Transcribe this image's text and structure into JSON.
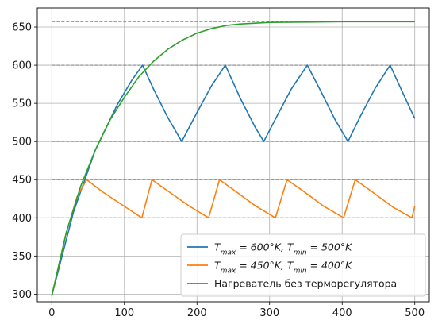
{
  "chart_data": {
    "type": "line",
    "title": "",
    "xlabel": "",
    "ylabel": "",
    "xlim": [
      -20,
      520
    ],
    "ylim": [
      290,
      675
    ],
    "grid": true,
    "legend_position": "lower-right",
    "x_ticks": [
      0,
      100,
      200,
      300,
      400,
      500
    ],
    "y_ticks": [
      300,
      350,
      400,
      450,
      500,
      550,
      600,
      650
    ],
    "x_tick_labels": [
      "0",
      "100",
      "200",
      "300",
      "400",
      "500"
    ],
    "y_tick_labels": [
      "300",
      "350",
      "400",
      "450",
      "500",
      "550",
      "600",
      "650"
    ],
    "reference_lines": [
      {
        "y": 657,
        "x_range": [
          0,
          500
        ],
        "color": "#808080",
        "style": "dashed"
      },
      {
        "y": 600,
        "x_range": [
          0,
          500
        ],
        "color": "#808080",
        "style": "dashed"
      },
      {
        "y": 500,
        "x_range": [
          0,
          500
        ],
        "color": "#808080",
        "style": "dashed"
      },
      {
        "y": 450,
        "x_range": [
          0,
          500
        ],
        "color": "#808080",
        "style": "dashed"
      },
      {
        "y": 400,
        "x_range": [
          0,
          500
        ],
        "color": "#808080",
        "style": "dashed"
      }
    ],
    "series": [
      {
        "name": "T_max = 600°K, T_min = 500°K",
        "label_parts": [
          "T",
          "max",
          " = 600°K, T",
          "min",
          " = 500°K"
        ],
        "color": "#1f77b4",
        "points": [
          [
            0,
            298
          ],
          [
            30,
            408
          ],
          [
            60,
            489
          ],
          [
            90,
            548
          ],
          [
            110,
            580
          ],
          [
            125,
            600
          ],
          [
            140,
            569
          ],
          [
            160,
            531
          ],
          [
            179,
            500
          ],
          [
            200,
            538
          ],
          [
            220,
            573
          ],
          [
            239,
            600
          ],
          [
            260,
            556
          ],
          [
            280,
            519
          ],
          [
            292,
            500
          ],
          [
            310,
            533
          ],
          [
            330,
            569
          ],
          [
            352,
            600
          ],
          [
            370,
            567
          ],
          [
            390,
            529
          ],
          [
            408,
            500
          ],
          [
            425,
            533
          ],
          [
            445,
            569
          ],
          [
            466,
            600
          ],
          [
            480,
            571
          ],
          [
            500,
            530
          ]
        ]
      },
      {
        "name": "T_max = 450°K, T_min = 400°K",
        "label_parts": [
          "T",
          "max",
          " = 450°K, T",
          "min",
          " = 400°K"
        ],
        "color": "#ff7f0e",
        "points": [
          [
            0,
            298
          ],
          [
            20,
            381
          ],
          [
            35,
            428
          ],
          [
            48,
            450
          ],
          [
            70,
            434
          ],
          [
            100,
            415
          ],
          [
            124,
            400
          ],
          [
            138,
            450
          ],
          [
            160,
            435
          ],
          [
            190,
            415
          ],
          [
            216,
            400
          ],
          [
            231,
            450
          ],
          [
            250,
            437
          ],
          [
            280,
            416
          ],
          [
            308,
            400
          ],
          [
            324,
            450
          ],
          [
            345,
            436
          ],
          [
            375,
            415
          ],
          [
            402,
            400
          ],
          [
            418,
            450
          ],
          [
            440,
            435
          ],
          [
            470,
            414
          ],
          [
            496,
            400
          ],
          [
            500,
            415
          ]
        ]
      },
      {
        "name": "Нагреватель без терморегулятора",
        "label_parts": [
          "Нагреватель без терморегулятора"
        ],
        "color": "#2ca02c",
        "points": [
          [
            0,
            298
          ],
          [
            20,
            381
          ],
          [
            40,
            442
          ],
          [
            60,
            489
          ],
          [
            80,
            528
          ],
          [
            100,
            558
          ],
          [
            120,
            585
          ],
          [
            140,
            605
          ],
          [
            160,
            621
          ],
          [
            180,
            633
          ],
          [
            200,
            642
          ],
          [
            220,
            648
          ],
          [
            240,
            652
          ],
          [
            260,
            654
          ],
          [
            280,
            655
          ],
          [
            300,
            656
          ],
          [
            350,
            656.5
          ],
          [
            400,
            657
          ],
          [
            450,
            657
          ],
          [
            500,
            657
          ]
        ]
      }
    ]
  }
}
